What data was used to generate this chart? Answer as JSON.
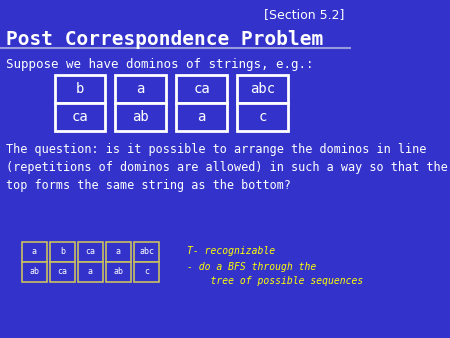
{
  "bg_color": "#3333cc",
  "title": "Post Correspondence Problem",
  "section": "[Section 5.2]",
  "subtitle": "Suppose we have dominos of strings, e.g.:",
  "body_text": "The question: is it possible to arrange the dominos in line\n(repetitions of dominos are allowed) in such a way so that the\ntop forms the same string as the bottom?",
  "dominos": [
    {
      "top": "b",
      "bot": "ca"
    },
    {
      "top": "a",
      "bot": "ab"
    },
    {
      "top": "ca",
      "bot": "a"
    },
    {
      "top": "abc",
      "bot": "c"
    }
  ],
  "small_dominos": [
    {
      "top": "a",
      "bot": "ab"
    },
    {
      "top": "b",
      "bot": "ca"
    },
    {
      "top": "ca",
      "bot": "a"
    },
    {
      "top": "a",
      "bot": "ab"
    },
    {
      "top": "abc",
      "bot": "c"
    }
  ],
  "note_line1": "T- recognizable",
  "note_line2": "- do a BFS through the",
  "note_line3": "    tree of possible sequences",
  "domino_box_color": "#3333cc",
  "domino_border_color": "#ffffff",
  "small_domino_border_color": "#c8c060",
  "title_color": "#ffffff",
  "section_color": "#ffffff",
  "text_color": "#ffffff",
  "note_color": "#ffff00"
}
